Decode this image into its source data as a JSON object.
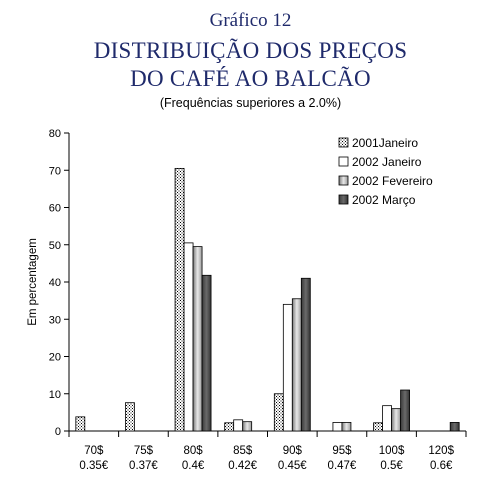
{
  "header": {
    "label": "Gráfico 12",
    "title_line1": "DISTRIBUIÇÃO DOS PREÇOS",
    "title_line2": "DO CAFÉ AO BALCÃO",
    "subtitle": "(Frequências superiores a 2.0%)"
  },
  "chart_data": {
    "type": "bar",
    "categories": [
      "70$",
      "75$",
      "80$",
      "85$",
      "90$",
      "95$",
      "100$",
      "120$"
    ],
    "categories_secondary": [
      "0.35€",
      "0.37€",
      "0.4€",
      "0.42€",
      "0.45€",
      "0.47€",
      "0.5€",
      "0.6€"
    ],
    "series": [
      {
        "name": "2001Janeiro",
        "values": [
          3.8,
          7.6,
          70.5,
          2.2,
          10.0,
          0,
          2.2,
          0
        ]
      },
      {
        "name": "2002 Janeiro",
        "values": [
          0,
          0,
          50.5,
          3.0,
          34.0,
          2.3,
          6.8,
          0
        ]
      },
      {
        "name": "2002 Fevereiro",
        "values": [
          0,
          0,
          49.5,
          2.5,
          35.5,
          2.3,
          6.0,
          0
        ]
      },
      {
        "name": "2002 Março",
        "values": [
          0,
          0,
          41.8,
          0,
          41.0,
          0,
          11.0,
          2.3
        ]
      }
    ],
    "ylabel": "Em percentagem",
    "ylim": [
      0,
      80
    ],
    "yticks": [
      0,
      10,
      20,
      30,
      40,
      50,
      60,
      70,
      80
    ],
    "legend_position": "top-right",
    "grid": false
  }
}
